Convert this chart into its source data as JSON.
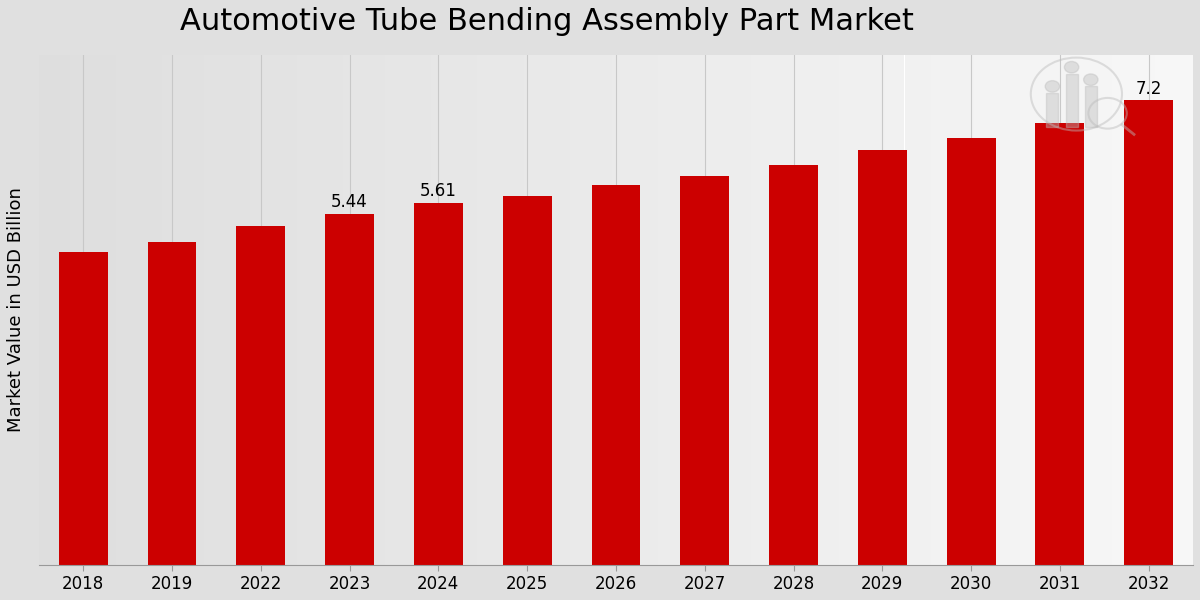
{
  "title": "Automotive Tube Bending Assembly Part Market",
  "ylabel": "Market Value in USD Billion",
  "categories": [
    "2018",
    "2019",
    "2022",
    "2023",
    "2024",
    "2025",
    "2026",
    "2027",
    "2028",
    "2029",
    "2030",
    "2031",
    "2032"
  ],
  "values": [
    4.85,
    5.0,
    5.25,
    5.44,
    5.61,
    5.72,
    5.88,
    6.02,
    6.2,
    6.42,
    6.62,
    6.85,
    7.2
  ],
  "bar_color": "#cc0000",
  "annotations": {
    "2023": "5.44",
    "2024": "5.61",
    "2032": "7.2"
  },
  "ylim": [
    0,
    7.9
  ],
  "grid_color": "#c8c8c8",
  "title_fontsize": 22,
  "label_fontsize": 13,
  "tick_fontsize": 12,
  "annotation_fontsize": 12,
  "bar_width": 0.55
}
